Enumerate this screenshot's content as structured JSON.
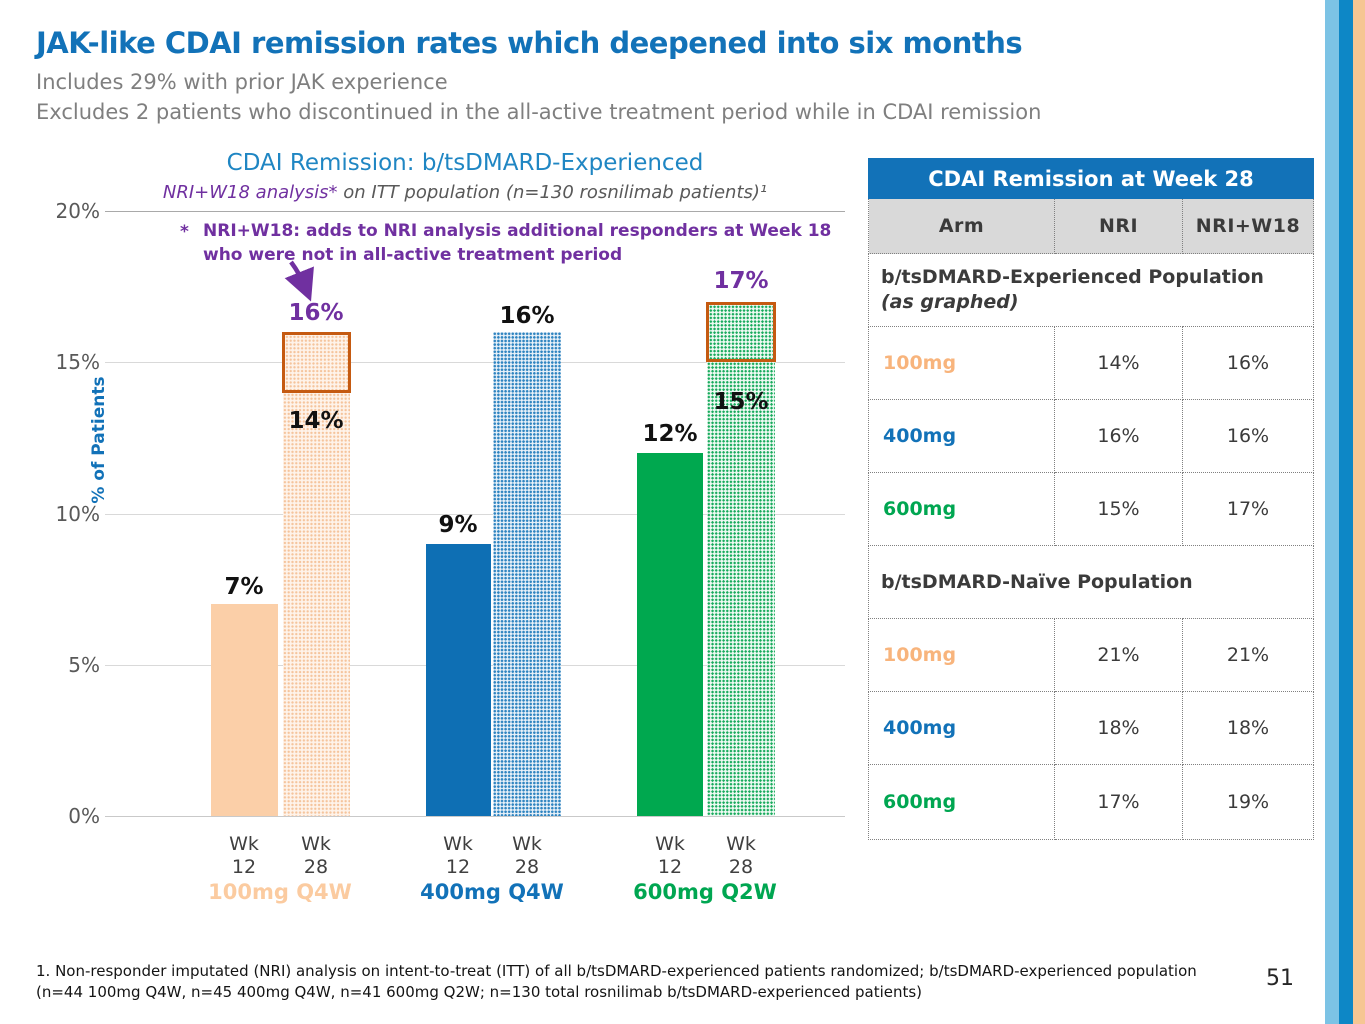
{
  "slide": {
    "title": "JAK-like CDAI remission rates which deepened into six months",
    "subtitle1": "Includes 29% with prior JAK experience",
    "subtitle2": "Excludes 2 patients who discontinued in the all-active treatment period while in CDAI remission",
    "page_number": "51",
    "footnote_line1": "1. Non-responder imputated (NRI) analysis on intent-to-treat (ITT) of all b/tsDMARD-experienced patients randomized; b/tsDMARD-experienced population",
    "footnote_line2": "(n=44 100mg Q4W, n=45 400mg Q4W, n=41 600mg Q2W; n=130 total rosnilimab b/tsDMARD-experienced patients)"
  },
  "chart": {
    "title": "CDAI Remission: b/tsDMARD-Experienced",
    "subtitle_em": "NRI+W18 analysis*",
    "subtitle_rest": " on ITT population (n=130 rosnilimab patients)¹",
    "annotation_star": "*",
    "annotation_line1": "NRI+W18: adds to NRI analysis additional responders at Week 18",
    "annotation_line2": "who were not in all-active treatment period",
    "ylabel": "% of Patients",
    "y_ticks": [
      "20%",
      "15%",
      "10%",
      "5%",
      "0%"
    ],
    "x_tick_wk": "Wk",
    "x_tick_12": "12",
    "x_tick_28": "28",
    "groups": [
      {
        "label": "100mg Q4W",
        "wk12_label": "7%",
        "wk28_label": "14%",
        "w18_label": "16%"
      },
      {
        "label": "400mg Q4W",
        "wk12_label": "9%",
        "wk28_label": "16%",
        "w18_label": ""
      },
      {
        "label": "600mg Q2W",
        "wk12_label": "12%",
        "wk28_label": "15%",
        "w18_label": "17%"
      }
    ]
  },
  "chart_data": {
    "type": "bar",
    "categories": [
      "100mg Q4W",
      "400mg Q4W",
      "600mg Q2W"
    ],
    "series": [
      {
        "name": "Wk 12 (NRI)",
        "values": [
          7,
          9,
          12
        ]
      },
      {
        "name": "Wk 28 (NRI)",
        "values": [
          14,
          16,
          15
        ]
      },
      {
        "name": "Wk 28 (NRI+W18)",
        "values": [
          16,
          16,
          17
        ]
      }
    ],
    "title": "CDAI Remission: b/tsDMARD-Experienced",
    "subtitle": "NRI+W18 analysis* on ITT population (n=130 rosnilimab patients)¹",
    "xlabel": "",
    "ylabel": "% of Patients",
    "ylim": [
      0,
      20
    ],
    "grid": true,
    "legend": false
  },
  "table": {
    "title": "CDAI Remission at Week 28",
    "columns": [
      "Arm",
      "NRI",
      "NRI+W18"
    ],
    "sections": [
      {
        "header": "b/tsDMARD-Experienced Population",
        "header_note": "(as graphed)",
        "rows": [
          {
            "arm": "100mg",
            "nri": "14%",
            "nri_w18": "16%"
          },
          {
            "arm": "400mg",
            "nri": "16%",
            "nri_w18": "16%"
          },
          {
            "arm": "600mg",
            "nri": "15%",
            "nri_w18": "17%"
          }
        ]
      },
      {
        "header": "b/tsDMARD-Naïve Population",
        "header_note": "",
        "rows": [
          {
            "arm": "100mg",
            "nri": "21%",
            "nri_w18": "21%"
          },
          {
            "arm": "400mg",
            "nri": "18%",
            "nri_w18": "18%"
          },
          {
            "arm": "600mg",
            "nri": "17%",
            "nri_w18": "19%"
          }
        ]
      }
    ]
  },
  "colors": {
    "title_blue": "#1272B8",
    "peach": "#FBCFA8",
    "blue": "#0E6FB4",
    "green": "#00A651",
    "purple": "#7030A0",
    "box_orange": "#C55A11",
    "stripe_light_blue": "#7CC3E5",
    "stripe_blue": "#0D87C6",
    "stripe_peach": "#F6C693"
  }
}
